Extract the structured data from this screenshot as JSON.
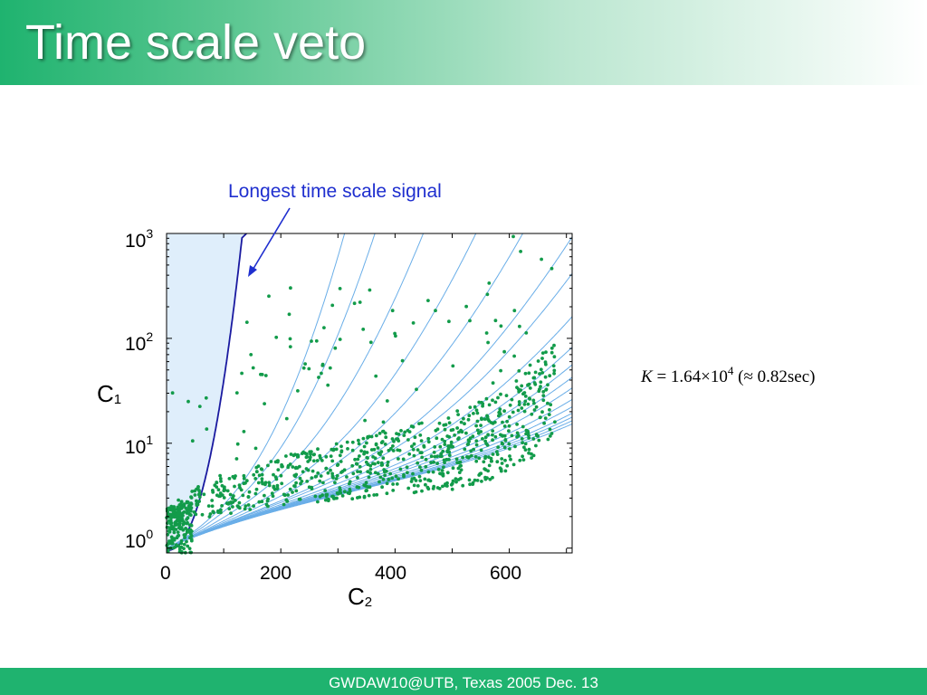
{
  "slide": {
    "title": "Time scale veto",
    "footer": "GWDAW10@UTB, Texas  2005 Dec. 13"
  },
  "annotation": {
    "text": "Longest time scale signal"
  },
  "formula": {
    "lhs": "K",
    "eq": " = 1.64×10",
    "exp": "4",
    "paren": " (≈ 0.82sec)"
  },
  "chart_data": {
    "type": "scatter",
    "xlabel_main": "C",
    "xlabel_sub": "2",
    "ylabel_main": "C",
    "ylabel_sub": "1",
    "xlim": [
      0,
      710
    ],
    "ylim": [
      0.9,
      1000
    ],
    "y_scale": "log",
    "x_ticks": [
      "0",
      "200",
      "400",
      "600"
    ],
    "y_ticks": [
      {
        "base": "10",
        "exp": "0"
      },
      {
        "base": "10",
        "exp": "1"
      },
      {
        "base": "10",
        "exp": "2"
      },
      {
        "base": "10",
        "exp": "3"
      }
    ],
    "colors": {
      "points": "#129b4a",
      "curves": "#6aaee8",
      "boundary": "#1a1aa0",
      "veto_region": "#dfeefb",
      "annotation": "#1f2fcf"
    }
  }
}
